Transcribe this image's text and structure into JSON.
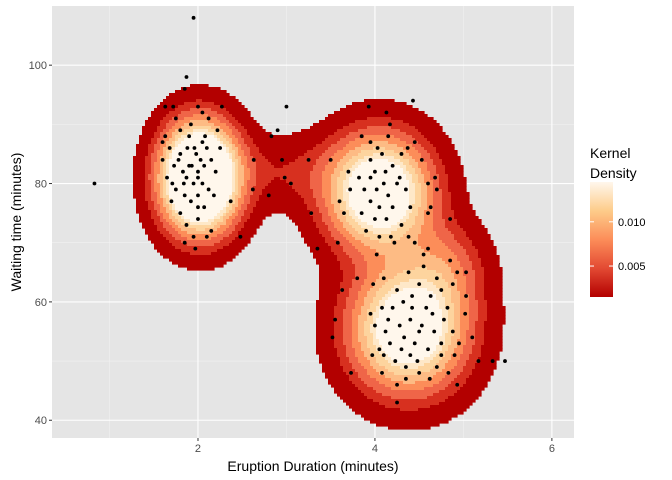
{
  "chart_data": {
    "type": "contour-density-scatter",
    "xlabel": "Eruption Duration (minutes)",
    "ylabel": "Waiting time (minutes)",
    "xlim": [
      0.35,
      6.25
    ],
    "ylim": [
      37,
      110
    ],
    "x_ticks": [
      2,
      4,
      6
    ],
    "x_minor": [
      1,
      3,
      5
    ],
    "y_ticks": [
      40,
      60,
      80,
      100
    ],
    "y_minor": [
      50,
      70,
      90
    ],
    "grid": true,
    "background": "#e5e5e5",
    "legend": {
      "title_lines": [
        "Kernel",
        "Density"
      ],
      "position": "right",
      "range": [
        0.0015,
        0.0145
      ],
      "ticks": [
        0.005,
        0.01
      ],
      "tick_labels": [
        "0.005",
        "0.010"
      ]
    },
    "fill_colors": [
      "#b30000",
      "#d7301f",
      "#ef6548",
      "#fc8d59",
      "#fdbb84",
      "#fdd49e",
      "#fee8c8",
      "#fff7ec"
    ],
    "density_components": [
      {
        "mu": [
          2.02,
          81.0
        ],
        "sd": [
          0.28,
          5.8
        ],
        "weight": 0.32
      },
      {
        "mu": [
          4.05,
          78.5
        ],
        "sd": [
          0.38,
          6.2
        ],
        "weight": 0.3
      },
      {
        "mu": [
          4.38,
          55.5
        ],
        "sd": [
          0.42,
          6.8
        ],
        "weight": 0.35
      },
      {
        "mu": [
          3.0,
          82.0
        ],
        "sd": [
          0.45,
          4.0
        ],
        "weight": 0.025
      },
      {
        "mu": [
          4.8,
          66.0
        ],
        "sd": [
          0.3,
          5.0
        ],
        "weight": 0.04
      }
    ],
    "points": [
      [
        0.83,
        80
      ],
      [
        1.95,
        108
      ],
      [
        3.0,
        93
      ],
      [
        4.43,
        94
      ],
      [
        4.25,
        43
      ],
      [
        1.87,
        98
      ],
      [
        1.85,
        96
      ],
      [
        1.72,
        93
      ],
      [
        1.63,
        93
      ],
      [
        2.27,
        93
      ],
      [
        2.0,
        93
      ],
      [
        2.05,
        92
      ],
      [
        1.75,
        91
      ],
      [
        1.92,
        90
      ],
      [
        2.12,
        91
      ],
      [
        2.22,
        89
      ],
      [
        1.8,
        89
      ],
      [
        1.63,
        88
      ],
      [
        2.05,
        87
      ],
      [
        1.68,
        86
      ],
      [
        1.88,
        86
      ],
      [
        2.1,
        86
      ],
      [
        2.25,
        86
      ],
      [
        1.8,
        85
      ],
      [
        1.98,
        85
      ],
      [
        1.6,
        84
      ],
      [
        2.15,
        84
      ],
      [
        1.73,
        83
      ],
      [
        1.9,
        83
      ],
      [
        1.83,
        82
      ],
      [
        2.0,
        82
      ],
      [
        2.2,
        82
      ],
      [
        1.65,
        81
      ],
      [
        1.87,
        81
      ],
      [
        1.95,
        80
      ],
      [
        2.05,
        80
      ],
      [
        1.75,
        79
      ],
      [
        2.12,
        79
      ],
      [
        1.85,
        78
      ],
      [
        2.0,
        78
      ],
      [
        1.7,
        77
      ],
      [
        1.92,
        77
      ],
      [
        2.07,
        76
      ],
      [
        1.8,
        75
      ],
      [
        2.0,
        74
      ],
      [
        1.87,
        73
      ],
      [
        2.15,
        72
      ],
      [
        1.95,
        71
      ],
      [
        2.1,
        71
      ],
      [
        1.85,
        70
      ],
      [
        1.97,
        69
      ],
      [
        1.78,
        84
      ],
      [
        2.08,
        88
      ],
      [
        1.96,
        86
      ],
      [
        2.03,
        84
      ],
      [
        1.9,
        88
      ],
      [
        2.62,
        79
      ],
      [
        2.63,
        84
      ],
      [
        2.48,
        71
      ],
      [
        2.0,
        76
      ],
      [
        1.93,
        83
      ],
      [
        2.07,
        83
      ],
      [
        1.84,
        80
      ],
      [
        2.0,
        81
      ],
      [
        1.71,
        80
      ],
      [
        2.18,
        78
      ],
      [
        2.37,
        77
      ],
      [
        1.6,
        87
      ],
      [
        2.9,
        89
      ],
      [
        2.83,
        88
      ],
      [
        2.95,
        84
      ],
      [
        2.98,
        81
      ],
      [
        3.05,
        80
      ],
      [
        2.8,
        78
      ],
      [
        3.25,
        84
      ],
      [
        3.28,
        75
      ],
      [
        3.35,
        69
      ],
      [
        3.58,
        70
      ],
      [
        3.6,
        77
      ],
      [
        3.72,
        79
      ],
      [
        3.5,
        84
      ],
      [
        3.85,
        88
      ],
      [
        3.7,
        82
      ],
      [
        3.65,
        75
      ],
      [
        3.93,
        93
      ],
      [
        4.13,
        92
      ],
      [
        4.17,
        90
      ],
      [
        3.95,
        87
      ],
      [
        4.03,
        86
      ],
      [
        4.08,
        85
      ],
      [
        4.3,
        85
      ],
      [
        4.37,
        86
      ],
      [
        4.45,
        87
      ],
      [
        4.53,
        84
      ],
      [
        4.2,
        83
      ],
      [
        4.0,
        82
      ],
      [
        3.82,
        81
      ],
      [
        3.95,
        81
      ],
      [
        4.1,
        80
      ],
      [
        4.25,
        80
      ],
      [
        3.88,
        79
      ],
      [
        4.02,
        79
      ],
      [
        4.15,
        78
      ],
      [
        4.35,
        79
      ],
      [
        3.95,
        77
      ],
      [
        4.05,
        76
      ],
      [
        4.2,
        76
      ],
      [
        4.4,
        76
      ],
      [
        3.85,
        75
      ],
      [
        4.0,
        74
      ],
      [
        4.13,
        74
      ],
      [
        4.3,
        73
      ],
      [
        3.9,
        72
      ],
      [
        4.05,
        71
      ],
      [
        4.22,
        70
      ],
      [
        4.45,
        70
      ],
      [
        4.6,
        69
      ],
      [
        4.55,
        68
      ],
      [
        4.63,
        76
      ],
      [
        4.68,
        81
      ],
      [
        4.7,
        79
      ],
      [
        4.18,
        71
      ],
      [
        4.02,
        68
      ],
      [
        3.8,
        64
      ],
      [
        3.63,
        62
      ],
      [
        3.55,
        57
      ],
      [
        3.52,
        54
      ],
      [
        3.73,
        48
      ],
      [
        3.97,
        51
      ],
      [
        4.08,
        48
      ],
      [
        4.25,
        46
      ],
      [
        4.35,
        49
      ],
      [
        4.5,
        48
      ],
      [
        4.62,
        47
      ],
      [
        4.75,
        51
      ],
      [
        4.83,
        48
      ],
      [
        4.93,
        46
      ],
      [
        5.1,
        54
      ],
      [
        5.17,
        50
      ],
      [
        5.33,
        50
      ],
      [
        5.47,
        50
      ],
      [
        5.03,
        61
      ],
      [
        4.93,
        65
      ],
      [
        5.03,
        65
      ],
      [
        4.88,
        63
      ],
      [
        4.75,
        62
      ],
      [
        4.63,
        61
      ],
      [
        4.5,
        63
      ],
      [
        4.42,
        61
      ],
      [
        4.32,
        60
      ],
      [
        4.2,
        59
      ],
      [
        4.08,
        59
      ],
      [
        3.95,
        58
      ],
      [
        4.0,
        56
      ],
      [
        4.15,
        57
      ],
      [
        4.28,
        56
      ],
      [
        4.4,
        57
      ],
      [
        4.53,
        56
      ],
      [
        4.67,
        55
      ],
      [
        4.78,
        57
      ],
      [
        4.88,
        55
      ],
      [
        4.95,
        53
      ],
      [
        4.75,
        53
      ],
      [
        4.6,
        52
      ],
      [
        4.45,
        53
      ],
      [
        4.3,
        52
      ],
      [
        4.17,
        53
      ],
      [
        4.05,
        52
      ],
      [
        4.12,
        55
      ],
      [
        4.33,
        54
      ],
      [
        4.5,
        55
      ],
      [
        4.65,
        58
      ],
      [
        4.82,
        59
      ],
      [
        4.7,
        64
      ],
      [
        4.55,
        66
      ],
      [
        4.38,
        65
      ],
      [
        4.25,
        62
      ],
      [
        4.42,
        59
      ],
      [
        4.58,
        59
      ],
      [
        4.23,
        50
      ],
      [
        4.4,
        51
      ],
      [
        4.1,
        51
      ],
      [
        4.35,
        47
      ],
      [
        4.48,
        50
      ],
      [
        4.7,
        49
      ],
      [
        4.9,
        51
      ],
      [
        5.02,
        58
      ],
      [
        4.85,
        67
      ],
      [
        4.38,
        71
      ],
      [
        4.85,
        74
      ],
      [
        3.98,
        63
      ],
      [
        4.1,
        64
      ],
      [
        4.6,
        75
      ],
      [
        4.15,
        88
      ],
      [
        3.95,
        84
      ],
      [
        4.12,
        82
      ],
      [
        4.28,
        81
      ],
      [
        4.6,
        80
      ]
    ]
  }
}
